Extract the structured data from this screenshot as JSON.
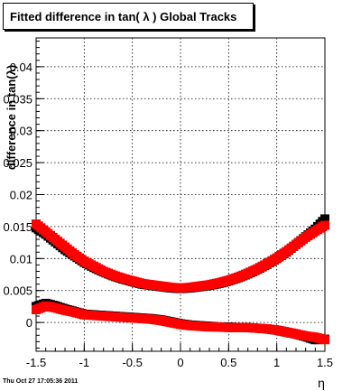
{
  "chart_data": {
    "type": "scatter",
    "title": "Fitted difference in tan( λ )  Global Tracks",
    "xlabel": "η",
    "ylabel": "difference in tan(λ)",
    "xlim": [
      -1.5,
      1.5
    ],
    "ylim": [
      -0.0045,
      0.0445
    ],
    "x_ticks": [
      -1.5,
      -1,
      -0.5,
      0,
      0.5,
      1,
      1.5
    ],
    "x_tick_labels": [
      "-1.5",
      "-1",
      "-0.5",
      "0",
      "0.5",
      "1",
      "1.5"
    ],
    "y_ticks": [
      0,
      0.005,
      0.01,
      0.015,
      0.02,
      0.025,
      0.03,
      0.035,
      0.04
    ],
    "y_tick_labels": [
      "0",
      "0.005",
      "0.01",
      "0.015",
      "0.02",
      "0.025",
      "0.03",
      "0.035",
      "0.04"
    ],
    "grid": true,
    "series": [
      {
        "color": "#000000",
        "marker": "square",
        "x": [
          -1.5,
          -1.4,
          -1.3,
          -1.2,
          -1.1,
          -1.0,
          -0.9,
          -0.8,
          -0.7,
          -0.6,
          -0.5,
          -0.4,
          -0.3,
          -0.2,
          -0.1,
          0.0,
          0.1,
          0.2,
          0.3,
          0.4,
          0.5,
          0.6,
          0.7,
          0.8,
          0.9,
          1.0,
          1.1,
          1.2,
          1.3,
          1.4,
          1.5
        ],
        "y": [
          0.0148,
          0.0138,
          0.0126,
          0.0114,
          0.0104,
          0.0094,
          0.0086,
          0.0079,
          0.0073,
          0.0068,
          0.0064,
          0.006,
          0.0058,
          0.0056,
          0.0054,
          0.0053,
          0.0054,
          0.0056,
          0.0058,
          0.0061,
          0.0065,
          0.007,
          0.0076,
          0.0083,
          0.0091,
          0.01,
          0.011,
          0.0122,
          0.0134,
          0.0146,
          0.0162
        ]
      },
      {
        "color": "#ff0000",
        "marker": "square",
        "x": [
          -1.5,
          -1.4,
          -1.3,
          -1.2,
          -1.1,
          -1.0,
          -0.9,
          -0.8,
          -0.7,
          -0.6,
          -0.5,
          -0.4,
          -0.3,
          -0.2,
          -0.1,
          0.0,
          0.1,
          0.2,
          0.3,
          0.4,
          0.5,
          0.6,
          0.7,
          0.8,
          0.9,
          1.0,
          1.1,
          1.2,
          1.3,
          1.4,
          1.5
        ],
        "y": [
          0.0154,
          0.0142,
          0.013,
          0.0118,
          0.0106,
          0.0096,
          0.0088,
          0.008,
          0.0074,
          0.0069,
          0.0065,
          0.0061,
          0.0059,
          0.0057,
          0.0055,
          0.0054,
          0.0055,
          0.0057,
          0.0059,
          0.0062,
          0.0066,
          0.0071,
          0.0077,
          0.0084,
          0.0092,
          0.0101,
          0.0111,
          0.0122,
          0.0133,
          0.0143,
          0.0152
        ]
      },
      {
        "color": "#000000",
        "marker": "square",
        "x": [
          -1.5,
          -1.4,
          -1.3,
          -1.2,
          -1.1,
          -1.0,
          -0.9,
          -0.8,
          -0.7,
          -0.6,
          -0.5,
          -0.4,
          -0.3,
          -0.2,
          -0.1,
          0.0,
          0.1,
          0.2,
          0.3,
          0.4,
          0.5,
          0.6,
          0.7,
          0.8,
          0.9,
          1.0,
          1.1,
          1.2,
          1.3,
          1.4,
          1.5
        ],
        "y": [
          0.0025,
          0.003,
          0.0026,
          0.0021,
          0.0017,
          0.0013,
          0.0012,
          0.0011,
          0.001,
          0.0009,
          0.0008,
          0.0007,
          0.0006,
          0.0004,
          0.0001,
          -0.0002,
          -0.0004,
          -0.0005,
          -0.0006,
          -0.0007,
          -0.0007,
          -0.0008,
          -0.0008,
          -0.0009,
          -0.001,
          -0.0012,
          -0.0015,
          -0.0018,
          -0.0022,
          -0.0027,
          -0.0026
        ]
      },
      {
        "color": "#ff0000",
        "marker": "square",
        "x": [
          -1.5,
          -1.4,
          -1.3,
          -1.2,
          -1.1,
          -1.0,
          -0.9,
          -0.8,
          -0.7,
          -0.6,
          -0.5,
          -0.4,
          -0.3,
          -0.2,
          -0.1,
          0.0,
          0.1,
          0.2,
          0.3,
          0.4,
          0.5,
          0.6,
          0.7,
          0.8,
          0.9,
          1.0,
          1.1,
          1.2,
          1.3,
          1.4,
          1.5
        ],
        "y": [
          0.002,
          0.0026,
          0.0023,
          0.0019,
          0.0016,
          0.0012,
          0.0011,
          0.001,
          0.0009,
          0.0008,
          0.0007,
          0.0006,
          0.0005,
          0.0003,
          0.0,
          -0.0003,
          -0.0005,
          -0.0006,
          -0.0007,
          -0.0007,
          -0.0008,
          -0.0008,
          -0.0008,
          -0.0009,
          -0.001,
          -0.0012,
          -0.0015,
          -0.0018,
          -0.0021,
          -0.0023,
          -0.0027
        ]
      }
    ]
  },
  "footer": {
    "timestamp": "Thu Oct 27 17:05:36 2011"
  }
}
